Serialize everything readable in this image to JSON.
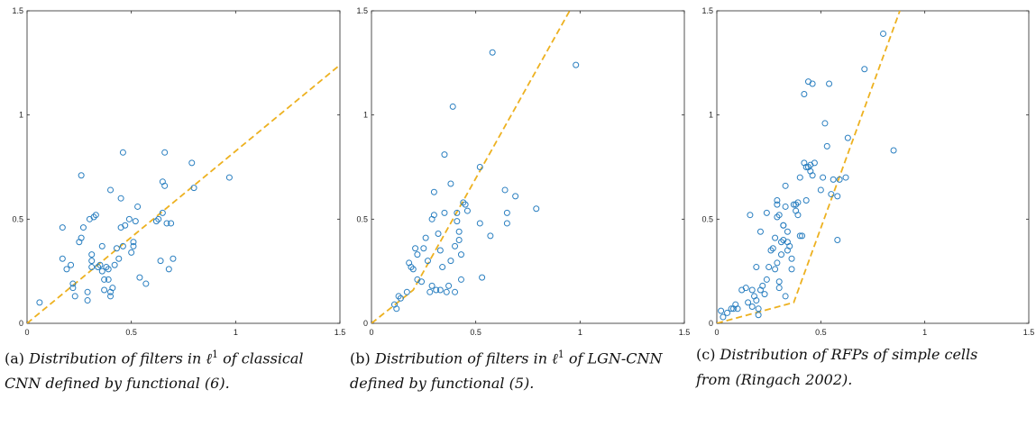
{
  "axes_ticks": {
    "x": [
      "0",
      "0.5",
      "1",
      "1.5"
    ],
    "y": [
      "0",
      "0.5",
      "1",
      "1.5"
    ]
  },
  "colors": {
    "points": "#2a7fc0",
    "fit": "#edb120",
    "axis": "#262626"
  },
  "captions": [
    {
      "tag": "(a)",
      "text": "Distribution of filters in ℓ",
      "sup": "1",
      "rest": " of classical CNN defined by functional (6)."
    },
    {
      "tag": "(b)",
      "text": "Distribution of filters in ℓ",
      "sup": "1",
      "rest": " of LGN-CNN defined by functional (5)."
    },
    {
      "tag": "(c)",
      "text": "Distribution of RFPs of simple cells from  (Ringach 2002).",
      "sup": "",
      "rest": ""
    }
  ],
  "chart_data": [
    {
      "type": "scatter",
      "xlim": [
        0,
        1.5
      ],
      "ylim": [
        0,
        1.5
      ],
      "grid": false,
      "fit_line": {
        "style": "dashed",
        "points": [
          [
            0,
            0
          ],
          [
            1.5,
            1.24
          ]
        ]
      },
      "points": [
        [
          0.06,
          0.1
        ],
        [
          0.17,
          0.31
        ],
        [
          0.17,
          0.46
        ],
        [
          0.19,
          0.26
        ],
        [
          0.21,
          0.28
        ],
        [
          0.22,
          0.19
        ],
        [
          0.22,
          0.17
        ],
        [
          0.23,
          0.13
        ],
        [
          0.25,
          0.39
        ],
        [
          0.26,
          0.71
        ],
        [
          0.26,
          0.41
        ],
        [
          0.27,
          0.46
        ],
        [
          0.29,
          0.15
        ],
        [
          0.29,
          0.11
        ],
        [
          0.3,
          0.5
        ],
        [
          0.31,
          0.3
        ],
        [
          0.31,
          0.33
        ],
        [
          0.31,
          0.27
        ],
        [
          0.32,
          0.51
        ],
        [
          0.33,
          0.52
        ],
        [
          0.34,
          0.27
        ],
        [
          0.35,
          0.28
        ],
        [
          0.36,
          0.37
        ],
        [
          0.36,
          0.25
        ],
        [
          0.37,
          0.16
        ],
        [
          0.37,
          0.21
        ],
        [
          0.38,
          0.27
        ],
        [
          0.39,
          0.21
        ],
        [
          0.39,
          0.26
        ],
        [
          0.4,
          0.15
        ],
        [
          0.4,
          0.64
        ],
        [
          0.4,
          0.13
        ],
        [
          0.41,
          0.17
        ],
        [
          0.42,
          0.28
        ],
        [
          0.43,
          0.36
        ],
        [
          0.44,
          0.31
        ],
        [
          0.45,
          0.46
        ],
        [
          0.45,
          0.6
        ],
        [
          0.46,
          0.82
        ],
        [
          0.46,
          0.37
        ],
        [
          0.47,
          0.47
        ],
        [
          0.49,
          0.5
        ],
        [
          0.5,
          0.34
        ],
        [
          0.51,
          0.37
        ],
        [
          0.51,
          0.39
        ],
        [
          0.52,
          0.49
        ],
        [
          0.53,
          0.56
        ],
        [
          0.54,
          0.22
        ],
        [
          0.57,
          0.19
        ],
        [
          0.62,
          0.49
        ],
        [
          0.63,
          0.5
        ],
        [
          0.64,
          0.3
        ],
        [
          0.65,
          0.68
        ],
        [
          0.65,
          0.53
        ],
        [
          0.66,
          0.66
        ],
        [
          0.66,
          0.82
        ],
        [
          0.67,
          0.48
        ],
        [
          0.68,
          0.26
        ],
        [
          0.69,
          0.48
        ],
        [
          0.7,
          0.31
        ],
        [
          0.79,
          0.77
        ],
        [
          0.8,
          0.65
        ],
        [
          0.97,
          0.7
        ]
      ]
    },
    {
      "type": "scatter",
      "xlim": [
        0,
        1.5
      ],
      "ylim": [
        0,
        1.5
      ],
      "grid": false,
      "fit_line": {
        "style": "dashed",
        "points": [
          [
            0,
            0
          ],
          [
            0.2,
            0.16
          ],
          [
            0.95,
            1.5
          ]
        ]
      },
      "points": [
        [
          0.11,
          0.09
        ],
        [
          0.12,
          0.07
        ],
        [
          0.13,
          0.13
        ],
        [
          0.14,
          0.12
        ],
        [
          0.17,
          0.15
        ],
        [
          0.18,
          0.29
        ],
        [
          0.19,
          0.27
        ],
        [
          0.2,
          0.26
        ],
        [
          0.21,
          0.36
        ],
        [
          0.22,
          0.33
        ],
        [
          0.22,
          0.21
        ],
        [
          0.24,
          0.2
        ],
        [
          0.25,
          0.36
        ],
        [
          0.26,
          0.41
        ],
        [
          0.27,
          0.3
        ],
        [
          0.28,
          0.15
        ],
        [
          0.29,
          0.18
        ],
        [
          0.29,
          0.5
        ],
        [
          0.3,
          0.52
        ],
        [
          0.3,
          0.63
        ],
        [
          0.31,
          0.16
        ],
        [
          0.32,
          0.43
        ],
        [
          0.33,
          0.16
        ],
        [
          0.33,
          0.35
        ],
        [
          0.34,
          0.27
        ],
        [
          0.35,
          0.53
        ],
        [
          0.35,
          0.81
        ],
        [
          0.36,
          0.15
        ],
        [
          0.37,
          0.18
        ],
        [
          0.38,
          0.3
        ],
        [
          0.38,
          0.67
        ],
        [
          0.39,
          1.04
        ],
        [
          0.4,
          0.15
        ],
        [
          0.4,
          0.37
        ],
        [
          0.41,
          0.53
        ],
        [
          0.41,
          0.49
        ],
        [
          0.42,
          0.44
        ],
        [
          0.42,
          0.4
        ],
        [
          0.43,
          0.33
        ],
        [
          0.43,
          0.21
        ],
        [
          0.44,
          0.58
        ],
        [
          0.45,
          0.57
        ],
        [
          0.46,
          0.54
        ],
        [
          0.52,
          0.75
        ],
        [
          0.52,
          0.48
        ],
        [
          0.53,
          0.22
        ],
        [
          0.57,
          0.42
        ],
        [
          0.58,
          1.3
        ],
        [
          0.64,
          0.64
        ],
        [
          0.65,
          0.53
        ],
        [
          0.65,
          0.48
        ],
        [
          0.69,
          0.61
        ],
        [
          0.79,
          0.55
        ],
        [
          0.98,
          1.24
        ]
      ]
    },
    {
      "type": "scatter",
      "xlim": [
        0,
        1.5
      ],
      "ylim": [
        0,
        1.5
      ],
      "grid": false,
      "fit_line": {
        "style": "dashed",
        "points": [
          [
            0,
            0
          ],
          [
            0.37,
            0.1
          ],
          [
            0.88,
            1.5
          ]
        ]
      },
      "points": [
        [
          0.02,
          0.06
        ],
        [
          0.03,
          0.03
        ],
        [
          0.05,
          0.05
        ],
        [
          0.07,
          0.07
        ],
        [
          0.08,
          0.07
        ],
        [
          0.09,
          0.09
        ],
        [
          0.1,
          0.07
        ],
        [
          0.12,
          0.16
        ],
        [
          0.14,
          0.17
        ],
        [
          0.15,
          0.1
        ],
        [
          0.16,
          0.52
        ],
        [
          0.17,
          0.08
        ],
        [
          0.17,
          0.16
        ],
        [
          0.18,
          0.13
        ],
        [
          0.19,
          0.27
        ],
        [
          0.19,
          0.11
        ],
        [
          0.2,
          0.07
        ],
        [
          0.2,
          0.04
        ],
        [
          0.21,
          0.16
        ],
        [
          0.21,
          0.44
        ],
        [
          0.22,
          0.18
        ],
        [
          0.23,
          0.14
        ],
        [
          0.24,
          0.21
        ],
        [
          0.24,
          0.53
        ],
        [
          0.25,
          0.27
        ],
        [
          0.26,
          0.35
        ],
        [
          0.27,
          0.36
        ],
        [
          0.28,
          0.41
        ],
        [
          0.28,
          0.26
        ],
        [
          0.29,
          0.59
        ],
        [
          0.29,
          0.51
        ],
        [
          0.29,
          0.57
        ],
        [
          0.29,
          0.29
        ],
        [
          0.3,
          0.52
        ],
        [
          0.3,
          0.2
        ],
        [
          0.3,
          0.17
        ],
        [
          0.31,
          0.33
        ],
        [
          0.31,
          0.39
        ],
        [
          0.32,
          0.4
        ],
        [
          0.32,
          0.47
        ],
        [
          0.32,
          0.47
        ],
        [
          0.33,
          0.56
        ],
        [
          0.33,
          0.66
        ],
        [
          0.33,
          0.13
        ],
        [
          0.34,
          0.35
        ],
        [
          0.34,
          0.44
        ],
        [
          0.34,
          0.39
        ],
        [
          0.35,
          0.37
        ],
        [
          0.36,
          0.31
        ],
        [
          0.36,
          0.26
        ],
        [
          0.37,
          0.57
        ],
        [
          0.38,
          0.57
        ],
        [
          0.38,
          0.54
        ],
        [
          0.39,
          0.58
        ],
        [
          0.39,
          0.52
        ],
        [
          0.4,
          0.42
        ],
        [
          0.4,
          0.7
        ],
        [
          0.41,
          0.42
        ],
        [
          0.42,
          0.77
        ],
        [
          0.42,
          1.1
        ],
        [
          0.43,
          0.75
        ],
        [
          0.43,
          0.59
        ],
        [
          0.44,
          0.75
        ],
        [
          0.44,
          1.16
        ],
        [
          0.45,
          0.76
        ],
        [
          0.45,
          0.73
        ],
        [
          0.46,
          0.71
        ],
        [
          0.46,
          1.15
        ],
        [
          0.47,
          0.77
        ],
        [
          0.5,
          0.64
        ],
        [
          0.51,
          0.7
        ],
        [
          0.52,
          0.96
        ],
        [
          0.53,
          0.85
        ],
        [
          0.54,
          1.15
        ],
        [
          0.55,
          0.62
        ],
        [
          0.56,
          0.69
        ],
        [
          0.58,
          0.4
        ],
        [
          0.58,
          0.61
        ],
        [
          0.59,
          0.69
        ],
        [
          0.62,
          0.7
        ],
        [
          0.63,
          0.89
        ],
        [
          0.71,
          1.22
        ],
        [
          0.8,
          1.39
        ],
        [
          0.85,
          0.83
        ]
      ]
    }
  ]
}
